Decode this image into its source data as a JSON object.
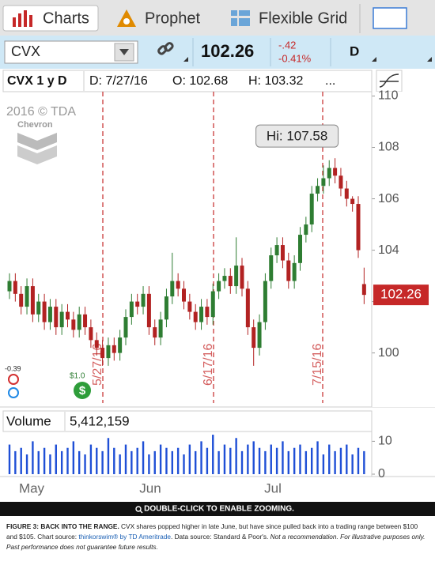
{
  "tabs": [
    "Charts",
    "Prophet",
    "Flexible Grid"
  ],
  "toolbar": {
    "symbol": "CVX",
    "price": "102.26",
    "change": "-.42",
    "change_pct": "-0.41%",
    "aggregation": "D"
  },
  "header": {
    "title": "CVX 1 y D",
    "date": "D: 7/27/16",
    "open": "O: 102.68",
    "high": "H: 103.32",
    "more": "..."
  },
  "watermark": "2016 © TDA",
  "logo": "Chevron",
  "chart_data": {
    "type": "candlestick",
    "open": [
      102.4,
      102.8,
      102.3,
      101.8,
      102.6,
      101.5,
      102.0,
      101.2,
      101.8,
      101.0,
      101.6,
      101.3,
      100.9,
      101.5,
      101.0,
      100.5,
      100.2,
      99.8,
      100.3,
      100.0,
      100.6,
      101.4,
      102.0,
      101.8,
      102.3,
      101.0,
      100.6,
      101.3,
      102.2,
      102.8,
      102.5,
      102.0,
      101.6,
      101.2,
      101.8,
      101.4,
      102.4,
      102.8,
      103.0,
      102.6,
      103.4,
      102.5,
      101.0,
      100.2,
      101.2,
      102.8,
      103.8,
      104.2,
      103.6,
      102.8,
      103.5,
      104.6,
      105.0,
      106.2,
      106.5,
      106.8,
      107.2,
      106.9,
      106.4,
      106.0,
      105.8,
      102.68
    ],
    "high": [
      103.1,
      103.1,
      102.6,
      102.9,
      102.9,
      102.3,
      102.3,
      102.1,
      102.1,
      101.9,
      101.9,
      101.6,
      101.8,
      101.8,
      101.3,
      100.8,
      100.5,
      100.6,
      100.6,
      100.9,
      101.7,
      102.3,
      102.3,
      102.6,
      102.6,
      101.3,
      101.6,
      102.5,
      103.9,
      103.1,
      102.8,
      102.3,
      101.9,
      102.1,
      102.1,
      102.7,
      103.1,
      103.3,
      103.3,
      104.5,
      103.7,
      102.8,
      101.3,
      101.5,
      103.1,
      104.1,
      104.5,
      104.5,
      103.9,
      103.8,
      104.9,
      105.3,
      106.5,
      106.8,
      107.3,
      107.5,
      107.58,
      107.2,
      106.7,
      106.1,
      106.1,
      103.32
    ],
    "low": [
      102.1,
      102.0,
      101.5,
      101.5,
      101.2,
      101.2,
      100.9,
      100.9,
      100.7,
      100.7,
      101.0,
      100.6,
      100.6,
      100.7,
      100.2,
      99.9,
      99.5,
      99.5,
      99.7,
      99.7,
      100.3,
      101.1,
      101.5,
      101.5,
      100.7,
      100.3,
      100.3,
      101.0,
      101.9,
      102.2,
      101.7,
      101.3,
      100.9,
      100.9,
      101.1,
      101.1,
      102.1,
      102.5,
      102.3,
      102.3,
      102.2,
      100.7,
      99.5,
      99.9,
      100.9,
      102.5,
      103.5,
      103.3,
      102.5,
      102.5,
      103.2,
      104.3,
      104.7,
      105.9,
      106.2,
      106.5,
      106.6,
      106.1,
      105.7,
      105.5,
      103.7,
      101.9
    ],
    "close": [
      102.8,
      102.3,
      101.8,
      102.6,
      101.5,
      102.0,
      101.2,
      101.8,
      101.0,
      101.6,
      101.3,
      100.9,
      101.5,
      101.0,
      100.5,
      100.2,
      99.8,
      100.3,
      100.0,
      100.6,
      101.4,
      102.0,
      101.8,
      102.3,
      101.0,
      100.6,
      101.3,
      102.2,
      102.8,
      102.5,
      102.0,
      101.6,
      101.2,
      101.8,
      101.4,
      102.4,
      102.8,
      103.0,
      102.6,
      103.4,
      102.5,
      101.0,
      100.2,
      101.2,
      102.8,
      103.8,
      104.2,
      103.6,
      102.8,
      103.5,
      104.6,
      105.0,
      106.2,
      106.5,
      106.8,
      107.2,
      106.9,
      106.4,
      106.0,
      105.8,
      104.0,
      102.26
    ],
    "up_color": "#2e7d32",
    "down_color": "#b22222",
    "ylim": [
      98.05,
      110.2
    ],
    "yticks": [
      100,
      102,
      104,
      106,
      108,
      110
    ],
    "last_price": 102.26,
    "annotation": "Hi: 107.58",
    "events": [
      "5/27/16",
      "6/17/16",
      "7/15/16"
    ],
    "markers": [
      "-0.39",
      "$1.0"
    ],
    "x_labels": [
      "May",
      "Jun",
      "Jul"
    ],
    "volume": {
      "title": "Volume",
      "total": "5,412,159",
      "color": "#1f4fd6",
      "values": [
        9,
        7,
        8,
        6,
        10,
        7,
        8,
        6,
        9,
        7,
        8,
        10,
        7,
        6,
        9,
        8,
        7,
        11,
        8,
        6,
        9,
        7,
        8,
        10,
        6,
        7,
        9,
        8,
        7,
        8,
        6,
        9,
        7,
        10,
        8,
        12,
        7,
        9,
        8,
        11,
        7,
        9,
        10,
        8,
        7,
        9,
        8,
        10,
        7,
        8,
        9,
        7,
        8,
        10,
        6,
        9,
        7,
        8,
        9,
        6,
        8,
        7
      ],
      "ylim": [
        0,
        12.5
      ],
      "yticks": [
        0,
        10
      ]
    }
  },
  "zoom_hint": "DOUBLE-CLICK TO ENABLE ZOOMING.",
  "caption": {
    "heading": "FIGURE 3: BACK INTO THE RANGE.",
    "body": " CVX shares popped higher in late June, but have since pulled back into a trading range between $100 and $105. Chart source: ",
    "source": "thinkorswim® by TD Ameritrade",
    "data_source": ". Data source: Standard & Poor's. ",
    "disclaimer": "Not a recommendation. For illustrative purposes only. Past performance does not guarantee future results."
  }
}
